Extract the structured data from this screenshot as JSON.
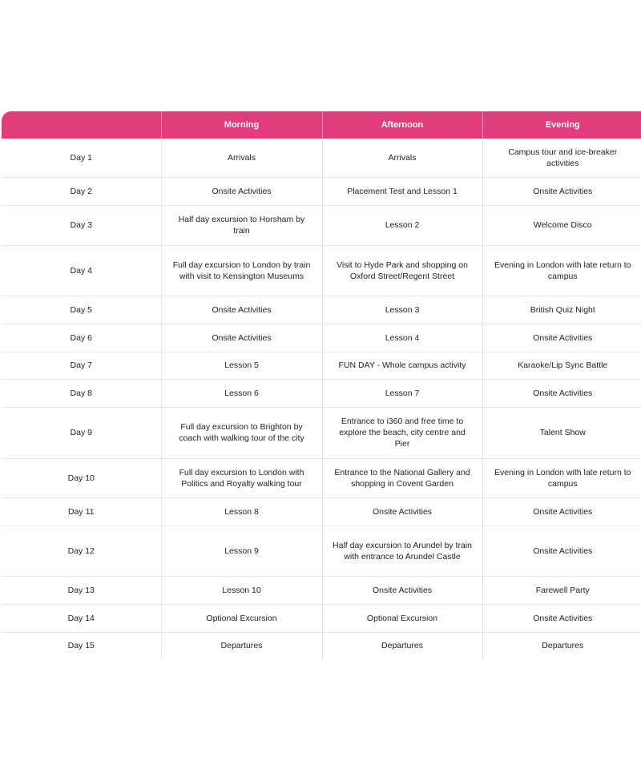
{
  "colors": {
    "header": "#e13d7b"
  },
  "headers": [
    "",
    "Morning",
    "Afternoon",
    "Evening"
  ],
  "rows": [
    [
      "Day 1",
      "Arrivals",
      "Arrivals",
      "Campus tour and ice-breaker activities"
    ],
    [
      "Day 2",
      "Onsite Activities",
      "Placement Test and Lesson 1",
      "Onsite Activities"
    ],
    [
      "Day 3",
      "Half day excursion to Horsham by train",
      "Lesson 2",
      "Welcome Disco"
    ],
    [
      "Day 4",
      "Full day excursion to London by train with visit to Kensington Museums",
      "Visit to Hyde Park and shopping on Oxford Street/Regent Street",
      "Evening in London with late return to campus"
    ],
    [
      "Day 5",
      "Onsite Activities",
      "Lesson 3",
      "British Quiz Night"
    ],
    [
      "Day 6",
      "Onsite Activities",
      "Lesson 4",
      "Onsite Activities"
    ],
    [
      "Day 7",
      "Lesson 5",
      "FUN DAY - Whole campus activity",
      "Karaoke/Lip Sync Battle"
    ],
    [
      "Day 8",
      "Lesson 6",
      "Lesson 7",
      "Onsite Activities"
    ],
    [
      "Day 9",
      "Full day excursion to Brighton by coach with walking tour of the city",
      "Entrance to i360 and free time to explore the beach, city centre and Pier",
      "Talent Show"
    ],
    [
      "Day 10",
      "Full day excursion to London with Politics and Royalty walking tour",
      "Entrance to the National Gallery and shopping in Covent Garden",
      "Evening in London with late return to campus"
    ],
    [
      "Day 11",
      "Lesson 8",
      "Onsite Activities",
      "Onsite Activities"
    ],
    [
      "Day 12",
      "Lesson 9",
      "Half day excursion to Arundel by train with entrance to Arundel Castle",
      "Onsite Activities"
    ],
    [
      "Day 13",
      "Lesson 10",
      "Onsite Activities",
      "Farewell Party"
    ],
    [
      "Day 14",
      "Optional Excursion",
      "Optional Excursion",
      "Onsite Activities"
    ],
    [
      "Day 15",
      "Departures",
      "Departures",
      "Departures"
    ]
  ]
}
